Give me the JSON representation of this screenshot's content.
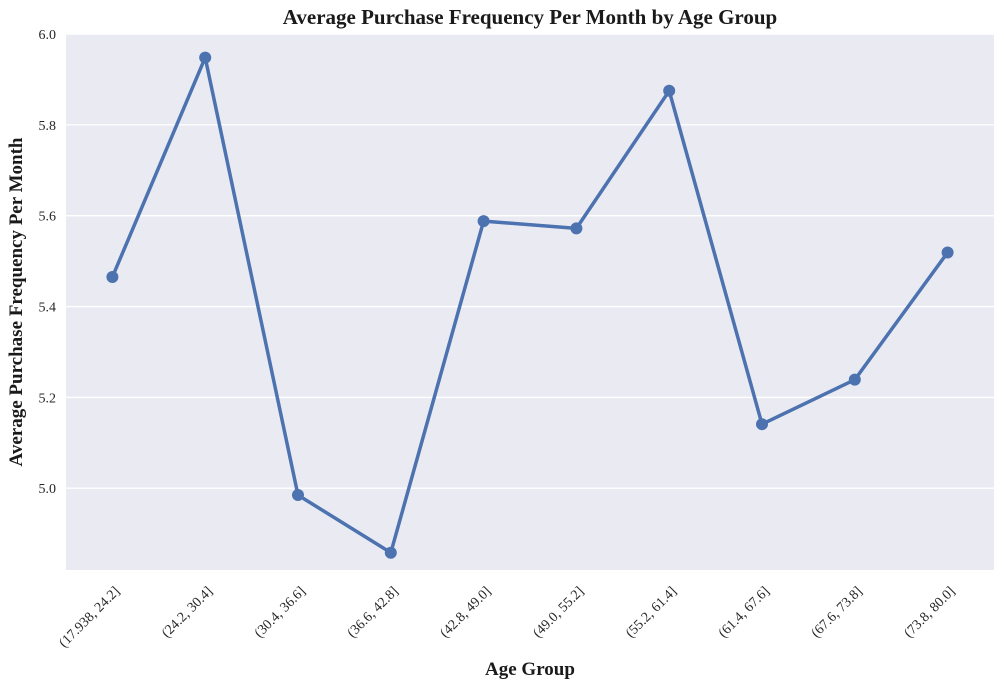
{
  "chart_data": {
    "type": "line",
    "title": "Average Purchase Frequency Per Month by Age Group",
    "xlabel": "Age Group",
    "ylabel": "Average Purchase Frequency Per Month",
    "categories": [
      "(17.938, 24.2]",
      "(24.2, 30.4]",
      "(30.4, 36.6]",
      "(36.6, 42.8]",
      "(42.8, 49.0]",
      "(49.0, 55.2]",
      "(55.2, 61.4]",
      "(61.4, 67.6]",
      "(67.6, 73.8]",
      "(73.8, 80.0]"
    ],
    "values": [
      5.465,
      5.948,
      4.985,
      4.858,
      5.588,
      5.572,
      5.875,
      5.141,
      5.239,
      5.519
    ],
    "ylim": [
      4.82,
      6.0
    ],
    "yticks": [
      "5.0",
      "5.2",
      "5.4",
      "5.6",
      "5.8",
      "6.0"
    ],
    "grid": true,
    "colors": {
      "line": "#4c72b0",
      "background": "#eaeaf2",
      "grid": "#ffffff"
    }
  }
}
